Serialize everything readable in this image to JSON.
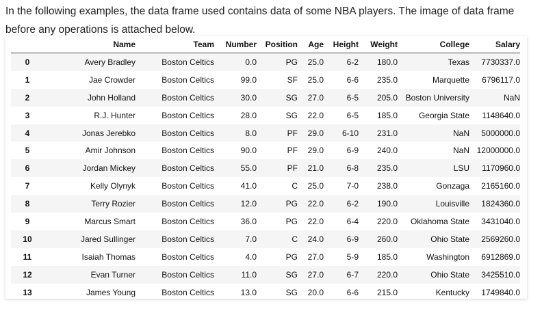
{
  "intro": {
    "text": "In the following examples, the data frame used contains data of some NBA players. The image of data frame before any operations is attached below."
  },
  "table": {
    "columns": [
      "",
      "Name",
      "Team",
      "Number",
      "Position",
      "Age",
      "Height",
      "Weight",
      "College",
      "Salary"
    ],
    "rows": [
      [
        "0",
        "Avery Bradley",
        "Boston Celtics",
        "0.0",
        "PG",
        "25.0",
        "6-2",
        "180.0",
        "Texas",
        "7730337.0"
      ],
      [
        "1",
        "Jae Crowder",
        "Boston Celtics",
        "99.0",
        "SF",
        "25.0",
        "6-6",
        "235.0",
        "Marquette",
        "6796117.0"
      ],
      [
        "2",
        "John Holland",
        "Boston Celtics",
        "30.0",
        "SG",
        "27.0",
        "6-5",
        "205.0",
        "Boston University",
        "NaN"
      ],
      [
        "3",
        "R.J. Hunter",
        "Boston Celtics",
        "28.0",
        "SG",
        "22.0",
        "6-5",
        "185.0",
        "Georgia State",
        "1148640.0"
      ],
      [
        "4",
        "Jonas Jerebko",
        "Boston Celtics",
        "8.0",
        "PF",
        "29.0",
        "6-10",
        "231.0",
        "NaN",
        "5000000.0"
      ],
      [
        "5",
        "Amir Johnson",
        "Boston Celtics",
        "90.0",
        "PF",
        "29.0",
        "6-9",
        "240.0",
        "NaN",
        "12000000.0"
      ],
      [
        "6",
        "Jordan Mickey",
        "Boston Celtics",
        "55.0",
        "PF",
        "21.0",
        "6-8",
        "235.0",
        "LSU",
        "1170960.0"
      ],
      [
        "7",
        "Kelly Olynyk",
        "Boston Celtics",
        "41.0",
        "C",
        "25.0",
        "7-0",
        "238.0",
        "Gonzaga",
        "2165160.0"
      ],
      [
        "8",
        "Terry Rozier",
        "Boston Celtics",
        "12.0",
        "PG",
        "22.0",
        "6-2",
        "190.0",
        "Louisville",
        "1824360.0"
      ],
      [
        "9",
        "Marcus Smart",
        "Boston Celtics",
        "36.0",
        "PG",
        "22.0",
        "6-4",
        "220.0",
        "Oklahoma State",
        "3431040.0"
      ],
      [
        "10",
        "Jared Sullinger",
        "Boston Celtics",
        "7.0",
        "C",
        "24.0",
        "6-9",
        "260.0",
        "Ohio State",
        "2569260.0"
      ],
      [
        "11",
        "Isaiah Thomas",
        "Boston Celtics",
        "4.0",
        "PG",
        "27.0",
        "5-9",
        "185.0",
        "Washington",
        "6912869.0"
      ],
      [
        "12",
        "Evan Turner",
        "Boston Celtics",
        "11.0",
        "SG",
        "27.0",
        "6-7",
        "220.0",
        "Ohio State",
        "3425510.0"
      ],
      [
        "13",
        "James Young",
        "Boston Celtics",
        "13.0",
        "SG",
        "20.0",
        "6-6",
        "215.0",
        "Kentucky",
        "1749840.0"
      ]
    ]
  }
}
